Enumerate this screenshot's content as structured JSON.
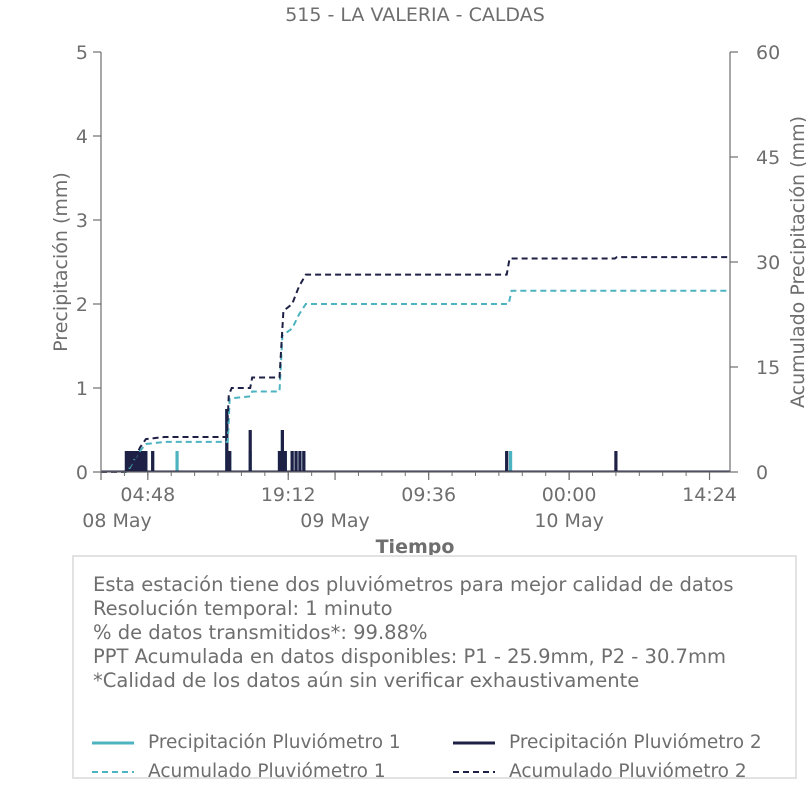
{
  "colors": {
    "p1": "#4db3c0",
    "p2": "#1e2145",
    "text": "#6e6e6e",
    "axis": "#6e6e6e"
  },
  "chart_data": {
    "type": "bar",
    "title": "515 - LA VALERIA - CALDAS",
    "xlabel": "Tiempo",
    "ylabel": "Precipitación (mm)",
    "y2label": "Acumulado Precipitación (mm)",
    "ylim": [
      0,
      5
    ],
    "y2lim": [
      0,
      60
    ],
    "yticks": [
      "0",
      "1",
      "2",
      "3",
      "4",
      "5"
    ],
    "y2ticks": [
      "0",
      "15",
      "30",
      "45",
      "60"
    ],
    "xlim_hours": [
      0,
      64.5
    ],
    "xticks": [
      {
        "label": "04:48",
        "hours": 4.8
      },
      {
        "label": "19:12",
        "hours": 19.2
      },
      {
        "label": "09:36",
        "hours": 33.6
      },
      {
        "label": "00:00",
        "hours": 48.0
      },
      {
        "label": "14:24",
        "hours": 62.4
      }
    ],
    "xticks_day": [
      {
        "label": "08 May",
        "hours": 0
      },
      {
        "label": "09 May",
        "hours": 24
      },
      {
        "label": "10 May",
        "hours": 48
      }
    ],
    "grid": false,
    "series": [
      {
        "name": "Precipitación Pluviómetro 1",
        "kind": "bar",
        "points": [
          [
            2.8,
            0.25
          ],
          [
            3.0,
            0.25
          ],
          [
            3.2,
            0.25
          ],
          [
            3.4,
            0.25
          ],
          [
            3.6,
            0.25
          ],
          [
            3.8,
            0.25
          ],
          [
            4.0,
            0.25
          ],
          [
            4.2,
            0.25
          ],
          [
            4.6,
            0.25
          ],
          [
            5.3,
            0.25
          ],
          [
            7.8,
            0.25
          ],
          [
            12.9,
            0.75
          ],
          [
            13.2,
            0.25
          ],
          [
            15.3,
            0.25
          ],
          [
            18.3,
            0.25
          ],
          [
            18.6,
            0.5
          ],
          [
            18.9,
            0.25
          ],
          [
            19.6,
            0.25
          ],
          [
            20.0,
            0.25
          ],
          [
            20.4,
            0.25
          ],
          [
            20.8,
            0.25
          ],
          [
            41.6,
            0.25
          ],
          [
            42.0,
            0.25
          ]
        ]
      },
      {
        "name": "Precipitación Pluviómetro 2",
        "kind": "bar",
        "points": [
          [
            2.6,
            0.25
          ],
          [
            2.8,
            0.25
          ],
          [
            3.0,
            0.25
          ],
          [
            3.2,
            0.25
          ],
          [
            3.4,
            0.25
          ],
          [
            3.6,
            0.25
          ],
          [
            3.8,
            0.25
          ],
          [
            4.0,
            0.25
          ],
          [
            4.2,
            0.25
          ],
          [
            4.4,
            0.25
          ],
          [
            4.6,
            0.25
          ],
          [
            5.3,
            0.25
          ],
          [
            12.9,
            0.75
          ],
          [
            13.2,
            0.25
          ],
          [
            15.3,
            0.5
          ],
          [
            18.3,
            0.25
          ],
          [
            18.6,
            0.5
          ],
          [
            18.9,
            0.25
          ],
          [
            19.6,
            0.25
          ],
          [
            20.0,
            0.25
          ],
          [
            20.4,
            0.25
          ],
          [
            20.8,
            0.25
          ],
          [
            41.6,
            0.25
          ],
          [
            52.8,
            0.25
          ]
        ]
      },
      {
        "name": "Acumulado Pluviómetro 1",
        "kind": "cumulative",
        "points": [
          [
            0,
            0
          ],
          [
            2.7,
            0
          ],
          [
            3.1,
            1.0
          ],
          [
            3.5,
            2.0
          ],
          [
            4.0,
            3.0
          ],
          [
            4.6,
            4.0
          ],
          [
            6.5,
            4.3
          ],
          [
            13.0,
            4.3
          ],
          [
            13.2,
            10.5
          ],
          [
            15.3,
            10.8
          ],
          [
            15.5,
            11.5
          ],
          [
            18.3,
            11.5
          ],
          [
            18.6,
            19.5
          ],
          [
            19.6,
            20.5
          ],
          [
            20.3,
            22.5
          ],
          [
            21.0,
            24.0
          ],
          [
            41.8,
            24.0
          ],
          [
            42.1,
            25.9
          ],
          [
            64.5,
            25.9
          ]
        ]
      },
      {
        "name": "Acumulado Pluviómetro 2",
        "kind": "cumulative",
        "points": [
          [
            0,
            0
          ],
          [
            2.5,
            0
          ],
          [
            3.0,
            1.0
          ],
          [
            3.5,
            2.0
          ],
          [
            4.0,
            3.5
          ],
          [
            4.6,
            4.7
          ],
          [
            6.5,
            5.0
          ],
          [
            12.9,
            5.0
          ],
          [
            13.1,
            11.0
          ],
          [
            13.4,
            12.0
          ],
          [
            15.3,
            12.0
          ],
          [
            15.5,
            13.5
          ],
          [
            18.3,
            13.5
          ],
          [
            18.7,
            23.0
          ],
          [
            19.6,
            24.0
          ],
          [
            20.3,
            26.5
          ],
          [
            21.0,
            28.2
          ],
          [
            41.6,
            28.2
          ],
          [
            41.9,
            30.5
          ],
          [
            52.7,
            30.5
          ],
          [
            52.9,
            30.7
          ],
          [
            64.5,
            30.7
          ]
        ]
      }
    ]
  },
  "info": {
    "lines": [
      "Esta estación tiene dos pluviómetros para mejor calidad de datos",
      "Resolución temporal: 1 minuto",
      "% de datos transmitidos*: 99.88%",
      "PPT Acumulada en datos disponibles: P1 - 25.9mm, P2 - 30.7mm",
      "*Calidad de los datos aún sin verificar exhaustivamente"
    ]
  },
  "legend": [
    {
      "label": "Precipitación Pluviómetro 1",
      "color": "#4db3c0",
      "dash": false
    },
    {
      "label": "Precipitación Pluviómetro 2",
      "color": "#1e2145",
      "dash": false
    },
    {
      "label": "Acumulado Pluviómetro 1",
      "color": "#4db3c0",
      "dash": true
    },
    {
      "label": "Acumulado Pluviómetro 2",
      "color": "#1e2145",
      "dash": true
    }
  ]
}
